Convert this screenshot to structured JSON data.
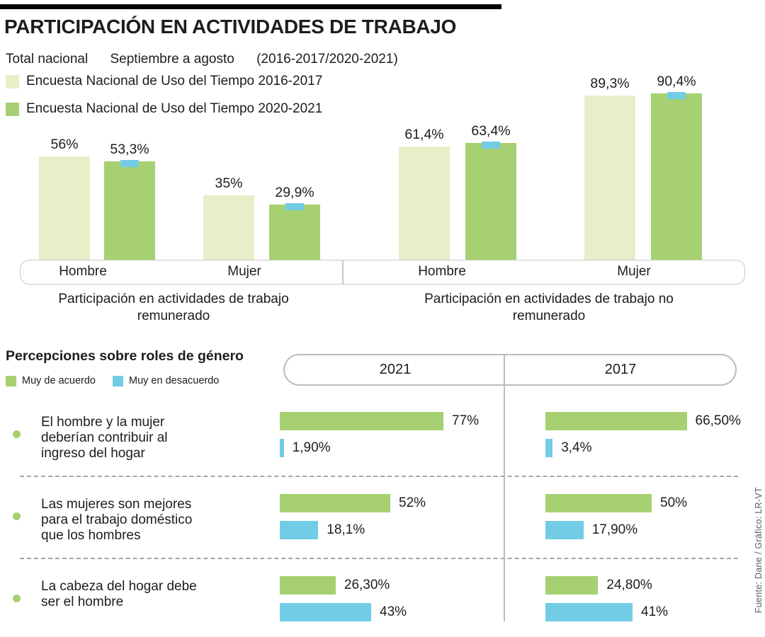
{
  "header": {
    "title": "PARTICIPACIÓN EN ACTIVIDADES DE TRABAJO",
    "subtitle": {
      "scope": "Total nacional",
      "period": "Septiembre a agosto",
      "years": "(2016-2017/2020-2021)"
    }
  },
  "colors": {
    "green_light": "#e6efc8",
    "green": "#a6d071",
    "blue": "#73cce5",
    "rule_black": "#000000",
    "border_gray": "#c9c9c9"
  },
  "chart_data": [
    {
      "type": "bar",
      "title": "Participación en actividades de trabajo remunerado",
      "categories": [
        "Hombre",
        "Mujer"
      ],
      "ylim": [
        0,
        100
      ],
      "unit": "%",
      "series": [
        {
          "name": "Encuesta Nacional de Uso del Tiempo 2016-2017",
          "color": "#e6efc8",
          "values": [
            56,
            35
          ],
          "labels": [
            "56%",
            "35%"
          ]
        },
        {
          "name": "Encuesta Nacional de Uso del Tiempo 2020-2021",
          "color": "#a6d071",
          "values": [
            53.3,
            29.9
          ],
          "labels": [
            "53,3%",
            "29,9%"
          ]
        }
      ]
    },
    {
      "type": "bar",
      "title": "Participación en actividades de trabajo no remunerado",
      "categories": [
        "Hombre",
        "Mujer"
      ],
      "ylim": [
        0,
        100
      ],
      "unit": "%",
      "series": [
        {
          "name": "Encuesta Nacional de Uso del Tiempo 2016-2017",
          "color": "#e6efc8",
          "values": [
            61.4,
            89.3
          ],
          "labels": [
            "61,4%",
            "89,3%"
          ]
        },
        {
          "name": "Encuesta Nacional de Uso del Tiempo 2020-2021",
          "color": "#a6d071",
          "values": [
            63.4,
            90.4
          ],
          "labels": [
            "63,4%",
            "90,4%"
          ]
        }
      ]
    },
    {
      "type": "bar",
      "orientation": "horizontal",
      "title": "Percepciones sobre roles de género",
      "legend": [
        {
          "label": "Muy de acuerdo",
          "color": "#a6d071"
        },
        {
          "label": "Muy en desacuerdo",
          "color": "#73cce5"
        }
      ],
      "columns": [
        "2021",
        "2017"
      ],
      "unit": "%",
      "rows": [
        {
          "statement": "El hombre y la mujer deberían contribuir al ingreso del hogar",
          "y2021": {
            "agree": 77,
            "agree_label": "77%",
            "disagree": 1.9,
            "disagree_label": "1,90%"
          },
          "y2017": {
            "agree": 66.5,
            "agree_label": "66,50%",
            "disagree": 3.4,
            "disagree_label": "3,4%"
          }
        },
        {
          "statement": "Las mujeres son mejores para el trabajo doméstico que los hombres",
          "y2021": {
            "agree": 52,
            "agree_label": "52%",
            "disagree": 18.1,
            "disagree_label": "18,1%"
          },
          "y2017": {
            "agree": 50,
            "agree_label": "50%",
            "disagree": 17.9,
            "disagree_label": "17,90%"
          }
        },
        {
          "statement": "La cabeza del hogar debe ser el hombre",
          "y2021": {
            "agree": 26.3,
            "agree_label": "26,30%",
            "disagree": 43,
            "disagree_label": "43%"
          },
          "y2017": {
            "agree": 24.8,
            "agree_label": "24,80%",
            "disagree": 41,
            "disagree_label": "41%"
          }
        }
      ]
    }
  ],
  "source": "Fuente: Dane / Gráfico: LR-VT"
}
